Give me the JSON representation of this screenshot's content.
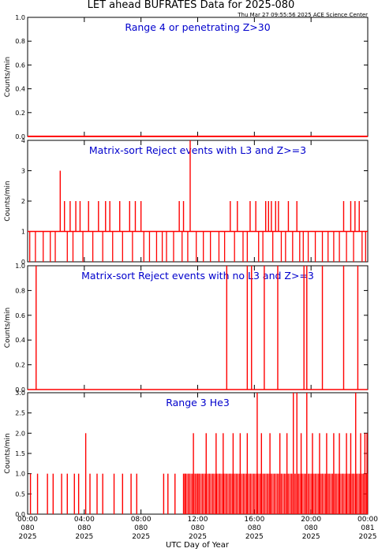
{
  "header": {
    "title": "LET ahead BUFRATES Data for 2025-080",
    "timestamp": "Thu Mar 27 09:55:56 2025 ACE Science Center"
  },
  "colors": {
    "series": "#ff0000",
    "label": "#0000cc",
    "axes": "#000000"
  },
  "chart_data": [
    {
      "type": "line",
      "title": "Range 4 or   penetrating Z>30",
      "ylabel": "Counts/min",
      "ylim": [
        0,
        1.0
      ],
      "yticks": [
        "0.0",
        "0.2",
        "0.4",
        "0.6",
        "0.8",
        "1.0"
      ],
      "xlim": [
        0,
        24
      ],
      "series": [
        {
          "x": [
            0,
            24
          ],
          "y": [
            0,
            0
          ]
        }
      ]
    },
    {
      "type": "line",
      "title": "Matrix-sort Reject events with L3 and Z>=3",
      "ylabel": "Counts/min",
      "ylim": [
        0,
        4
      ],
      "yticks": [
        "0",
        "1",
        "2",
        "3",
        "4"
      ],
      "xlim": [
        0,
        24
      ],
      "baseline": 1,
      "spikes": [
        {
          "x": 2.3,
          "y": 3
        },
        {
          "x": 2.6,
          "y": 2
        },
        {
          "x": 3.0,
          "y": 2
        },
        {
          "x": 3.4,
          "y": 2
        },
        {
          "x": 3.7,
          "y": 2
        },
        {
          "x": 4.3,
          "y": 2
        },
        {
          "x": 5.0,
          "y": 2
        },
        {
          "x": 5.5,
          "y": 2
        },
        {
          "x": 5.8,
          "y": 2
        },
        {
          "x": 6.5,
          "y": 2
        },
        {
          "x": 7.2,
          "y": 2
        },
        {
          "x": 7.6,
          "y": 2
        },
        {
          "x": 8.0,
          "y": 2
        },
        {
          "x": 10.7,
          "y": 2
        },
        {
          "x": 11.0,
          "y": 2
        },
        {
          "x": 11.47,
          "y": 4
        },
        {
          "x": 14.3,
          "y": 2
        },
        {
          "x": 14.8,
          "y": 2
        },
        {
          "x": 15.7,
          "y": 2
        },
        {
          "x": 16.1,
          "y": 2
        },
        {
          "x": 16.8,
          "y": 2
        },
        {
          "x": 17.0,
          "y": 2
        },
        {
          "x": 17.2,
          "y": 2
        },
        {
          "x": 17.5,
          "y": 2
        },
        {
          "x": 17.7,
          "y": 2
        },
        {
          "x": 18.4,
          "y": 2
        },
        {
          "x": 19.0,
          "y": 2
        },
        {
          "x": 22.3,
          "y": 2
        },
        {
          "x": 22.8,
          "y": 2
        },
        {
          "x": 23.1,
          "y": 2
        },
        {
          "x": 23.4,
          "y": 2
        }
      ],
      "zeros": [
        0.15,
        0.55,
        1.1,
        1.6,
        1.95,
        2.8,
        3.2,
        3.9,
        4.6,
        5.3,
        6.0,
        6.7,
        7.4,
        8.2,
        8.6,
        9.1,
        9.5,
        9.8,
        10.3,
        10.9,
        11.3,
        11.9,
        12.4,
        12.9,
        13.5,
        13.9,
        14.6,
        15.2,
        15.5,
        16.3,
        16.6,
        17.3,
        17.9,
        18.2,
        18.7,
        19.2,
        19.45,
        19.8,
        20.3,
        20.8,
        21.2,
        21.6,
        22.0,
        22.5,
        23.0,
        23.6,
        23.85
      ]
    },
    {
      "type": "line",
      "title": "Matrix-sort Reject events with no L3 and Z>=3",
      "ylabel": "Counts/min",
      "ylim": [
        0,
        1.0
      ],
      "yticks": [
        "0.0",
        "0.2",
        "0.4",
        "0.6",
        "0.8",
        "1.0"
      ],
      "xlim": [
        0,
        24
      ],
      "baseline": 0,
      "spikes": [
        {
          "x": 0.6,
          "y": 1
        },
        {
          "x": 14.05,
          "y": 1
        },
        {
          "x": 15.5,
          "y": 1
        },
        {
          "x": 15.8,
          "y": 1
        },
        {
          "x": 16.7,
          "y": 1
        },
        {
          "x": 17.65,
          "y": 1
        },
        {
          "x": 19.5,
          "y": 1
        },
        {
          "x": 19.7,
          "y": 1
        },
        {
          "x": 20.8,
          "y": 1
        },
        {
          "x": 22.3,
          "y": 1
        },
        {
          "x": 23.3,
          "y": 1
        }
      ],
      "zeros": []
    },
    {
      "type": "line",
      "title": "Range 3 He3",
      "ylabel": "Counts/min",
      "ylim": [
        0,
        3.0
      ],
      "yticks": [
        "0.0",
        "0.5",
        "1.0",
        "1.5",
        "2.0",
        "2.5",
        "3.0"
      ],
      "xlim": [
        0,
        24
      ],
      "spikes": [
        {
          "x": 0.2,
          "y": 1
        },
        {
          "x": 0.7,
          "y": 1
        },
        {
          "x": 1.4,
          "y": 1
        },
        {
          "x": 1.8,
          "y": 1
        },
        {
          "x": 2.4,
          "y": 1
        },
        {
          "x": 2.8,
          "y": 1
        },
        {
          "x": 3.3,
          "y": 1
        },
        {
          "x": 3.6,
          "y": 1
        },
        {
          "x": 4.1,
          "y": 2
        },
        {
          "x": 4.4,
          "y": 1
        },
        {
          "x": 4.9,
          "y": 1
        },
        {
          "x": 5.3,
          "y": 1
        },
        {
          "x": 6.1,
          "y": 1
        },
        {
          "x": 6.7,
          "y": 1
        },
        {
          "x": 7.3,
          "y": 1
        },
        {
          "x": 7.7,
          "y": 1
        },
        {
          "x": 9.6,
          "y": 1
        },
        {
          "x": 9.9,
          "y": 1
        },
        {
          "x": 10.4,
          "y": 1
        },
        {
          "x": 11.0,
          "y": 1
        },
        {
          "x": 11.1,
          "y": 1
        },
        {
          "x": 11.7,
          "y": 2
        },
        {
          "x": 12.0,
          "y": 1
        },
        {
          "x": 12.6,
          "y": 2
        },
        {
          "x": 13.3,
          "y": 2
        },
        {
          "x": 13.8,
          "y": 2
        },
        {
          "x": 14.5,
          "y": 2
        },
        {
          "x": 15.0,
          "y": 2
        },
        {
          "x": 15.5,
          "y": 2
        },
        {
          "x": 16.2,
          "y": 3
        },
        {
          "x": 16.5,
          "y": 2
        },
        {
          "x": 17.1,
          "y": 2
        },
        {
          "x": 17.8,
          "y": 2
        },
        {
          "x": 18.3,
          "y": 2
        },
        {
          "x": 18.75,
          "y": 3
        },
        {
          "x": 19.0,
          "y": 3
        },
        {
          "x": 19.3,
          "y": 2
        },
        {
          "x": 19.7,
          "y": 3
        },
        {
          "x": 20.1,
          "y": 2
        },
        {
          "x": 20.6,
          "y": 2
        },
        {
          "x": 21.1,
          "y": 2
        },
        {
          "x": 21.6,
          "y": 2
        },
        {
          "x": 22.0,
          "y": 2
        },
        {
          "x": 22.5,
          "y": 2
        },
        {
          "x": 22.8,
          "y": 2
        },
        {
          "x": 23.15,
          "y": 3
        },
        {
          "x": 23.5,
          "y": 2
        },
        {
          "x": 23.8,
          "y": 2
        },
        {
          "x": 23.95,
          "y": 2
        }
      ],
      "dense_band": [
        11.1,
        24
      ]
    }
  ],
  "xaxis": {
    "label": "UTC Day of Year",
    "ticks": [
      {
        "x": 0,
        "line1": "00:00",
        "line2": "080",
        "line3": "2025"
      },
      {
        "x": 4,
        "line1": "04:00",
        "line2": "080",
        "line3": "2025"
      },
      {
        "x": 8,
        "line1": "08:00",
        "line2": "080",
        "line3": "2025"
      },
      {
        "x": 12,
        "line1": "12:00",
        "line2": "080",
        "line3": "2025"
      },
      {
        "x": 16,
        "line1": "16:00",
        "line2": "080",
        "line3": "2025"
      },
      {
        "x": 20,
        "line1": "20:00",
        "line2": "080",
        "line3": "2025"
      },
      {
        "x": 24,
        "line1": "00:00",
        "line2": "081",
        "line3": "2025"
      }
    ]
  }
}
